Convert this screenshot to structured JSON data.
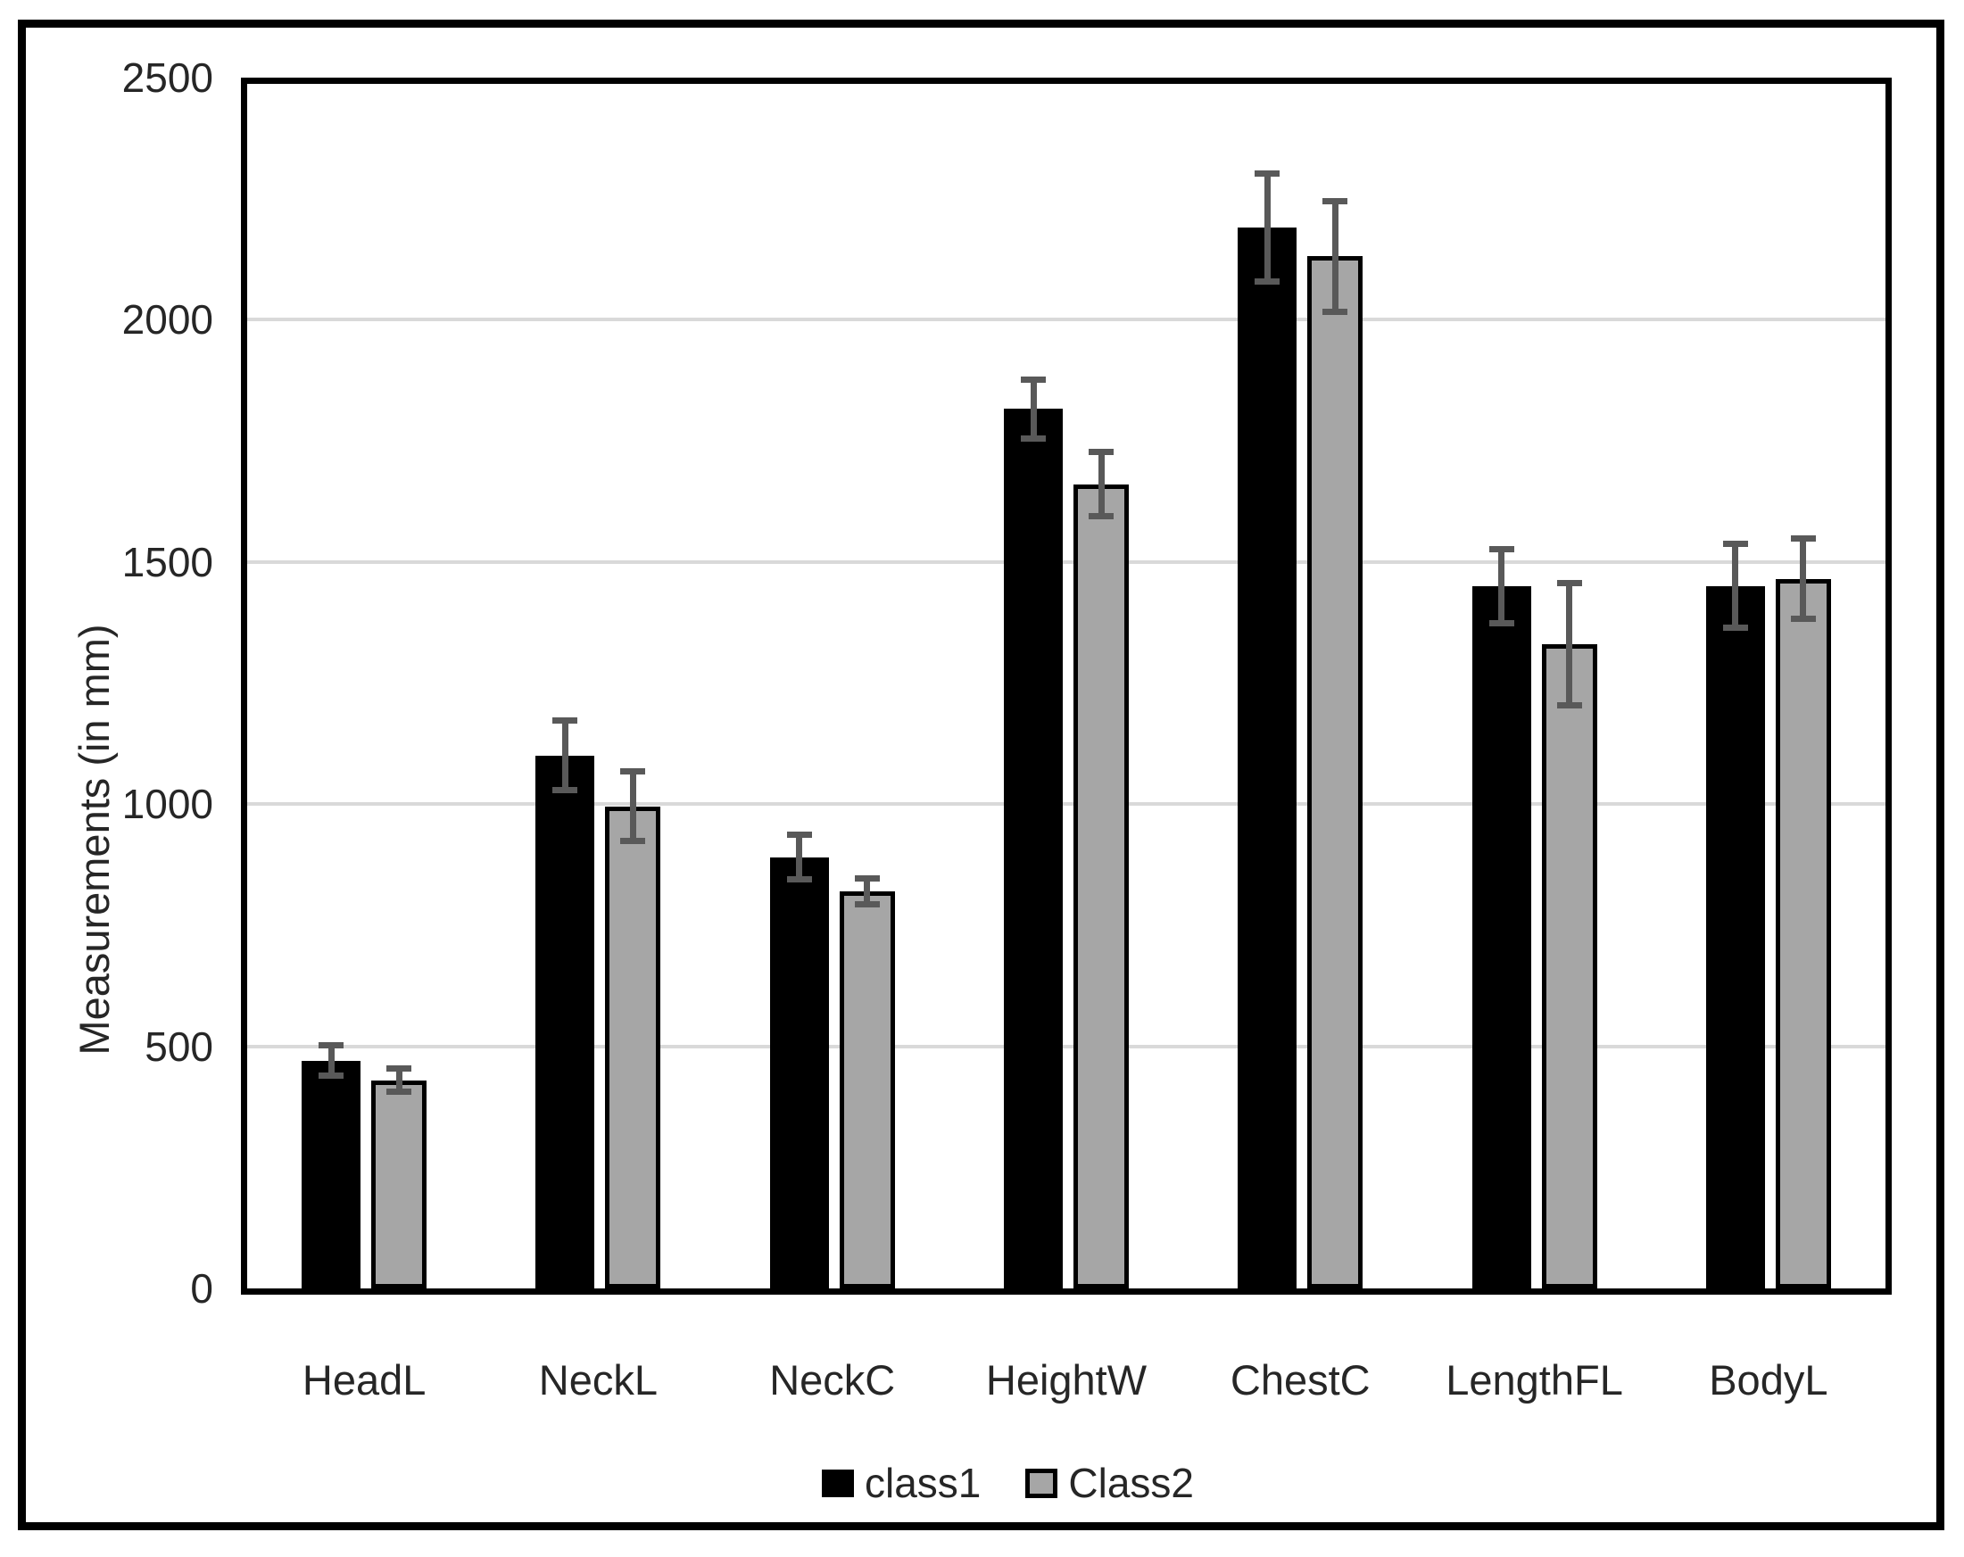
{
  "chart_data": {
    "type": "bar",
    "variant": "grouped-vertical-with-error-bars",
    "title": "",
    "xlabel": "",
    "ylabel": "Measurements (in mm)",
    "ylim": [
      0,
      2500
    ],
    "yticks": [
      0,
      500,
      1000,
      1500,
      2000,
      2500
    ],
    "grid": "horizontal",
    "gridline_color": "#d9d9d9",
    "error_bar_color": "#595959",
    "legend_position": "bottom",
    "categories": [
      "HeadL",
      "NeckL",
      "NeckC",
      "HeightW",
      "ChestC",
      "LengthFL",
      "BodyL"
    ],
    "series": [
      {
        "name": "class1",
        "fill": "#000000",
        "values": [
          470,
          1100,
          890,
          1815,
          2190,
          1450,
          1450
        ],
        "errors": [
          25,
          65,
          40,
          55,
          105,
          70,
          80
        ]
      },
      {
        "name": "Class2",
        "fill": "#a6a6a6",
        "border": "#000000",
        "values": [
          430,
          995,
          820,
          1660,
          2130,
          1330,
          1465
        ],
        "errors": [
          17,
          65,
          20,
          60,
          108,
          120,
          77
        ]
      }
    ]
  }
}
